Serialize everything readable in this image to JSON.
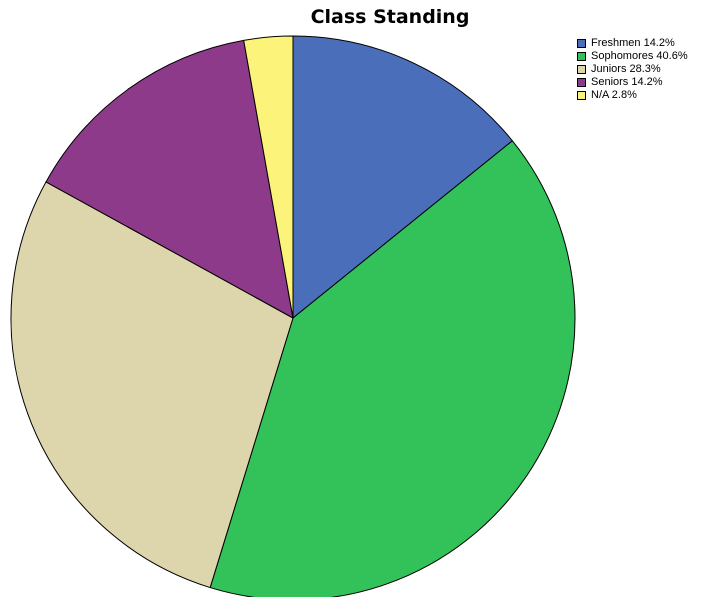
{
  "chart_data": {
    "type": "pie",
    "title": "Class Standing",
    "legend_position": "top-right",
    "slices": [
      {
        "label": "Freshmen",
        "value": 14.2,
        "legend": "Freshmen 14.2%",
        "color": "#4A6EBA"
      },
      {
        "label": "Sophomores",
        "value": 40.6,
        "legend": "Sophomores 40.6%",
        "color": "#33C15A"
      },
      {
        "label": "Juniors",
        "value": 28.3,
        "legend": "Juniors 28.3%",
        "color": "#DDD6AC"
      },
      {
        "label": "Seniors",
        "value": 14.2,
        "legend": "Seniors 14.2%",
        "color": "#8E3A8A"
      },
      {
        "label": "N/A",
        "value": 2.8,
        "legend": "N/A 2.8%",
        "color": "#FBF37A"
      }
    ]
  }
}
